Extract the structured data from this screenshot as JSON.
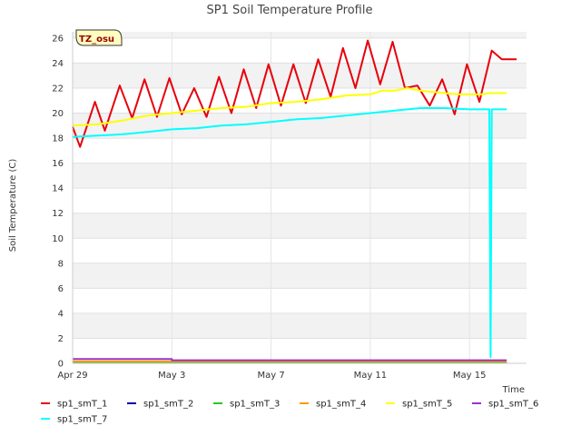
{
  "chart_data": {
    "type": "line",
    "title": "SP1 Soil Temperature Profile",
    "xlabel": "Time",
    "ylabel": "Soil Temperature (C)",
    "badge": "TZ_osu",
    "xlim": [
      0,
      18.3
    ],
    "ylim": [
      0,
      26.5
    ],
    "yticks": [
      0,
      2,
      4,
      6,
      8,
      10,
      12,
      14,
      16,
      18,
      20,
      22,
      24,
      26
    ],
    "xticks": [
      {
        "value": 0,
        "label": "Apr 29"
      },
      {
        "value": 4,
        "label": "May 3"
      },
      {
        "value": 8,
        "label": "May 7"
      },
      {
        "value": 12,
        "label": "May 11"
      },
      {
        "value": 16,
        "label": "May 15"
      }
    ],
    "grid": true,
    "legend_position": "bottom",
    "series": [
      {
        "name": "sp1_smT_1",
        "color": "#e8000b",
        "x": [
          0,
          0.3,
          0.9,
          1.3,
          1.9,
          2.4,
          2.9,
          3.4,
          3.9,
          4.4,
          4.9,
          5.4,
          5.9,
          6.4,
          6.9,
          7.4,
          7.9,
          8.4,
          8.9,
          9.4,
          9.9,
          10.4,
          10.9,
          11.4,
          11.9,
          12.4,
          12.9,
          13.4,
          13.9,
          14.4,
          14.9,
          15.4,
          15.9,
          16.4,
          16.9,
          17.3,
          17.7,
          17.9
        ],
        "y": [
          18.9,
          17.3,
          20.9,
          18.6,
          22.2,
          19.6,
          22.7,
          19.7,
          22.8,
          19.9,
          22.0,
          19.7,
          22.9,
          20.0,
          23.5,
          20.4,
          23.9,
          20.6,
          23.9,
          20.8,
          24.3,
          21.3,
          25.2,
          22.0,
          25.8,
          22.3,
          25.7,
          22.0,
          22.2,
          20.6,
          22.7,
          19.9,
          23.9,
          20.9,
          25.0,
          24.3,
          24.3,
          24.3
        ]
      },
      {
        "name": "sp1_smT_2",
        "color": "#0000aa",
        "x": [
          0,
          17.5
        ],
        "y": [
          0.1,
          0.1
        ]
      },
      {
        "name": "sp1_smT_3",
        "color": "#22cc22",
        "x": [
          0,
          17.5
        ],
        "y": [
          0.05,
          0.05
        ]
      },
      {
        "name": "sp1_smT_4",
        "color": "#ff9900",
        "x": [
          0,
          17.5
        ],
        "y": [
          0.15,
          0.15
        ]
      },
      {
        "name": "sp1_smT_5",
        "color": "#ffff00",
        "x": [
          0,
          1,
          2,
          3,
          4,
          5,
          6,
          7,
          8,
          9,
          10,
          11,
          12,
          12.5,
          13,
          13.5,
          14,
          14.5,
          15,
          15.5,
          16,
          16.5,
          16.8,
          17.5
        ],
        "y": [
          19.0,
          19.1,
          19.4,
          19.8,
          20.0,
          20.2,
          20.4,
          20.5,
          20.8,
          20.9,
          21.1,
          21.4,
          21.5,
          21.8,
          21.8,
          22.0,
          21.8,
          21.7,
          21.6,
          21.5,
          21.5,
          21.5,
          21.6,
          21.6
        ]
      },
      {
        "name": "sp1_smT_6",
        "color": "#9933cc",
        "x": [
          0,
          4,
          4,
          17.5
        ],
        "y": [
          0.35,
          0.35,
          0.25,
          0.25
        ]
      },
      {
        "name": "sp1_smT_7",
        "color": "#00ffff",
        "x": [
          0,
          1,
          2,
          3,
          4,
          5,
          6,
          7,
          8,
          9,
          10,
          11,
          12,
          13,
          14,
          15,
          16,
          16.8,
          16.85,
          16.9,
          17.5
        ],
        "y": [
          18.1,
          18.2,
          18.3,
          18.5,
          18.7,
          18.8,
          19.0,
          19.1,
          19.3,
          19.5,
          19.6,
          19.8,
          20.0,
          20.2,
          20.4,
          20.4,
          20.3,
          20.3,
          0.5,
          20.3,
          20.3
        ]
      }
    ]
  }
}
